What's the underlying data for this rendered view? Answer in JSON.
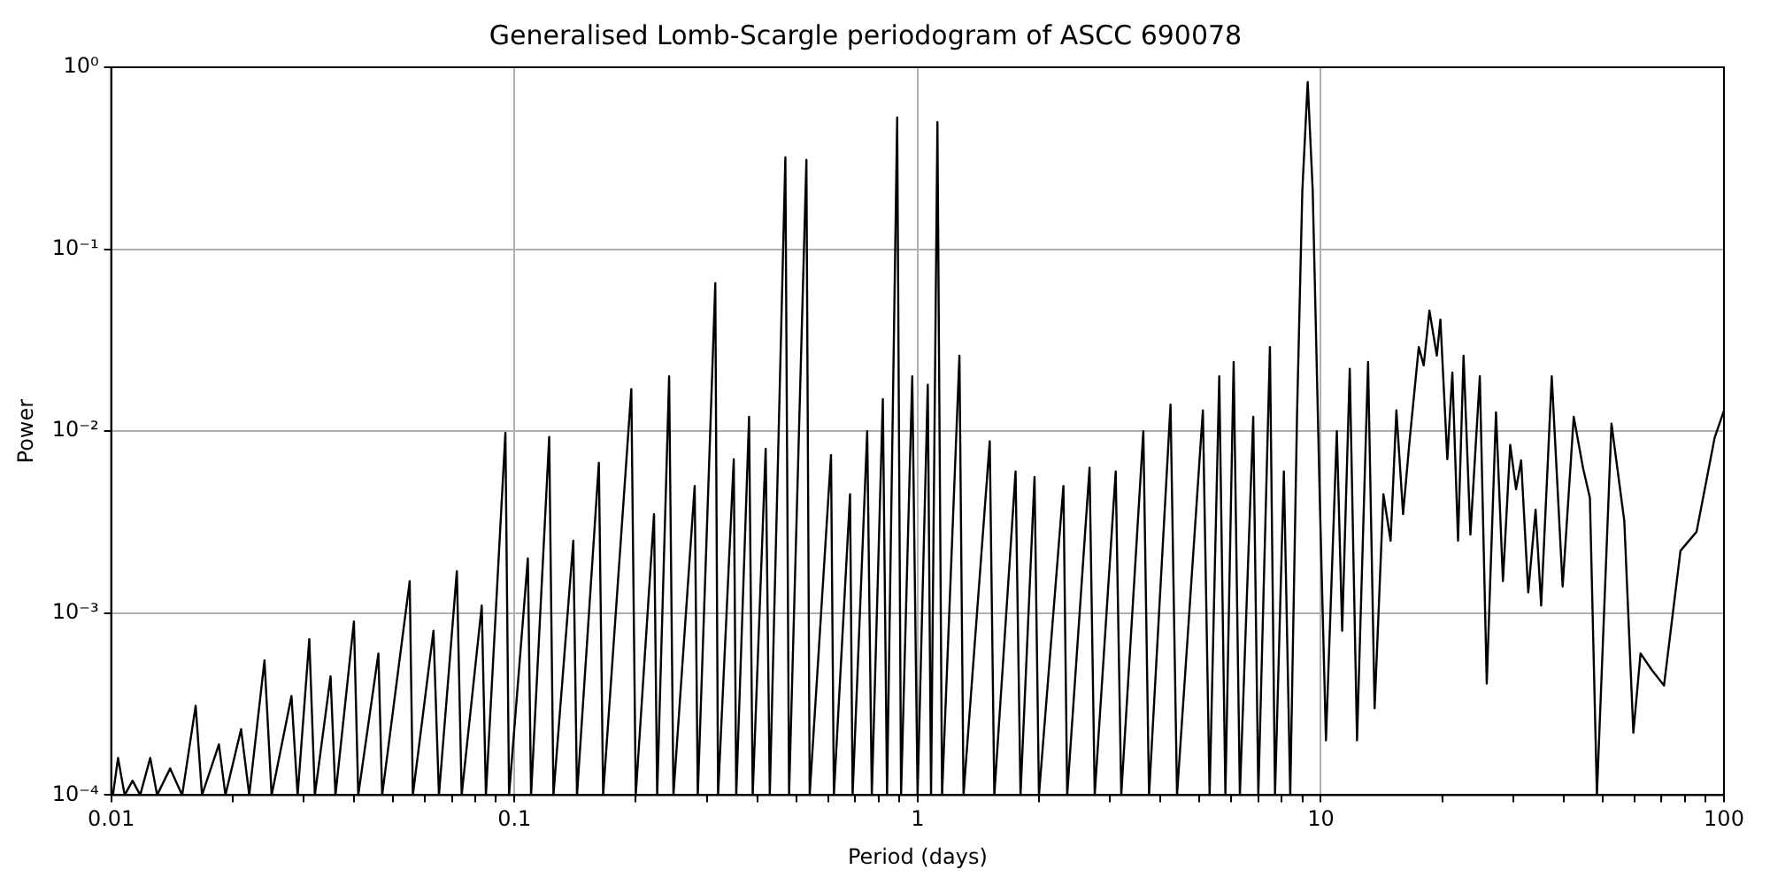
{
  "chart_data": {
    "type": "line",
    "title": "Generalised Lomb-Scargle periodogram of ASCC 690078",
    "xlabel": "Period (days)",
    "ylabel": "Power",
    "log": "xy",
    "grid": true,
    "legend": false,
    "marker": "none",
    "line_style": "solid",
    "xlim": [
      0.01,
      100
    ],
    "ylim": [
      0.0001,
      1
    ],
    "xticks": [
      0.01,
      {
        "value": 0.02,
        "label": null
      },
      {
        "value": 0.03,
        "label": null
      },
      {
        "value": 0.04,
        "label": null
      },
      {
        "value": 0.05,
        "label": null
      },
      {
        "value": 0.06,
        "label": null
      },
      {
        "value": 0.07,
        "label": null
      },
      {
        "value": 0.08,
        "label": null
      },
      {
        "value": 0.09,
        "label": null
      },
      0.1,
      {
        "value": 0.2,
        "label": null
      },
      {
        "value": 0.3,
        "label": null
      },
      {
        "value": 0.4,
        "label": null
      },
      {
        "value": 0.5,
        "label": null
      },
      {
        "value": 0.6,
        "label": null
      },
      {
        "value": 0.7,
        "label": null
      },
      {
        "value": 0.8,
        "label": null
      },
      {
        "value": 0.9,
        "label": null
      },
      1,
      {
        "value": 2,
        "label": null
      },
      {
        "value": 3,
        "label": null
      },
      {
        "value": 4,
        "label": null
      },
      {
        "value": 5,
        "label": null
      },
      {
        "value": 6,
        "label": null
      },
      {
        "value": 7,
        "label": null
      },
      {
        "value": 8,
        "label": null
      },
      {
        "value": 9,
        "label": null
      },
      10,
      {
        "value": 20,
        "label": null
      },
      {
        "value": 30,
        "label": null
      },
      {
        "value": 40,
        "label": null
      },
      {
        "value": 50,
        "label": null
      },
      {
        "value": 60,
        "label": null
      },
      {
        "value": 70,
        "label": null
      },
      {
        "value": 80,
        "label": null
      },
      {
        "value": 90,
        "label": null
      },
      100
    ],
    "yticks": [
      {
        "value": 0.0001,
        "label": "10⁻⁴"
      },
      {
        "value": 0.001,
        "label": "10⁻³"
      },
      {
        "value": 0.01,
        "label": "10⁻²"
      },
      {
        "value": 0.1,
        "label": "10⁻¹"
      },
      {
        "value": 1,
        "label": "10⁰"
      }
    ],
    "series": [
      {
        "color": "#000000",
        "x": [
          0.0101,
          0.0104,
          0.0108,
          0.0113,
          0.0118,
          0.0125,
          0.013,
          0.014,
          0.015,
          0.0162,
          0.0168,
          0.0185,
          0.0192,
          0.021,
          0.022,
          0.024,
          0.025,
          0.028,
          0.029,
          0.031,
          0.032,
          0.035,
          0.036,
          0.04,
          0.041,
          0.046,
          0.047,
          0.055,
          0.056,
          0.063,
          0.065,
          0.072,
          0.074,
          0.083,
          0.085,
          0.095,
          0.097,
          0.108,
          0.11,
          0.122,
          0.125,
          0.14,
          0.143,
          0.162,
          0.166,
          0.195,
          0.2,
          0.222,
          0.226,
          0.242,
          0.248,
          0.28,
          0.285,
          0.315,
          0.32,
          0.35,
          0.355,
          0.382,
          0.39,
          0.42,
          0.43,
          0.47,
          0.48,
          0.53,
          0.54,
          0.61,
          0.62,
          0.68,
          0.69,
          0.75,
          0.77,
          0.82,
          0.84,
          0.89,
          0.91,
          0.97,
          1.0,
          1.06,
          1.08,
          1.12,
          1.15,
          1.27,
          1.3,
          1.51,
          1.55,
          1.75,
          1.8,
          1.95,
          2.0,
          2.3,
          2.35,
          2.67,
          2.75,
          3.1,
          3.2,
          3.63,
          3.75,
          4.24,
          4.4,
          5.1,
          5.3,
          5.6,
          5.8,
          6.08,
          6.3,
          6.8,
          7.0,
          7.48,
          7.7,
          8.1,
          8.4,
          8.73,
          9.0,
          9.28,
          9.55,
          9.95,
          10.3,
          10.96,
          11.3,
          11.8,
          12.3,
          13.1,
          13.6,
          14.3,
          14.9,
          15.4,
          16.0,
          16.6,
          17.5,
          18.0,
          18.6,
          19.4,
          19.8,
          20.6,
          21.2,
          21.9,
          22.6,
          23.5,
          24.8,
          25.8,
          27.2,
          28.3,
          29.5,
          30.5,
          31.4,
          32.7,
          34.1,
          35.2,
          37.4,
          39.8,
          42.4,
          44.7,
          46.5,
          48.4,
          52.6,
          56.6,
          59.6,
          62.1,
          66.1,
          71.0,
          78.0,
          85.5,
          94.8,
          100
        ],
        "values": [
          0.0001,
          0.00016,
          0.0001,
          0.00012,
          0.0001,
          0.00016,
          0.0001,
          0.00014,
          0.0001,
          0.00031,
          0.0001,
          0.00019,
          0.0001,
          0.00023,
          0.0001,
          0.00055,
          0.0001,
          0.00035,
          0.0001,
          0.00072,
          0.0001,
          0.00045,
          0.0001,
          0.0009,
          0.0001,
          0.0006,
          0.0001,
          0.0015,
          0.0001,
          0.0008,
          0.0001,
          0.0017,
          0.0001,
          0.0011,
          0.0001,
          0.0098,
          0.0001,
          0.002,
          0.0001,
          0.0093,
          0.0001,
          0.0025,
          0.0001,
          0.0067,
          0.0001,
          0.017,
          0.0001,
          0.0035,
          0.0001,
          0.02,
          0.0001,
          0.005,
          0.0001,
          0.065,
          0.0001,
          0.007,
          0.0001,
          0.012,
          0.0001,
          0.008,
          0.0001,
          0.32,
          0.0001,
          0.31,
          0.0001,
          0.0074,
          0.0001,
          0.0045,
          0.0001,
          0.01,
          0.0001,
          0.015,
          0.0001,
          0.53,
          0.0001,
          0.02,
          0.0001,
          0.018,
          0.0001,
          0.5,
          0.0001,
          0.026,
          0.0001,
          0.0088,
          0.0001,
          0.006,
          0.0001,
          0.0056,
          0.0001,
          0.005,
          0.0001,
          0.0063,
          0.0001,
          0.006,
          0.0001,
          0.01,
          0.0001,
          0.014,
          0.0001,
          0.013,
          0.0001,
          0.02,
          0.0001,
          0.024,
          0.0001,
          0.012,
          0.0001,
          0.029,
          0.0001,
          0.006,
          0.0001,
          0.012,
          0.21,
          0.83,
          0.21,
          0.004,
          0.0002,
          0.01,
          0.0008,
          0.022,
          0.0002,
          0.024,
          0.0003,
          0.0045,
          0.0025,
          0.013,
          0.0035,
          0.0088,
          0.029,
          0.023,
          0.046,
          0.026,
          0.041,
          0.007,
          0.021,
          0.0025,
          0.026,
          0.0027,
          0.02,
          0.00041,
          0.0127,
          0.0015,
          0.0084,
          0.0048,
          0.0069,
          0.0013,
          0.0037,
          0.0011,
          0.02,
          0.0014,
          0.012,
          0.0063,
          0.0043,
          0.0001,
          0.011,
          0.0032,
          0.00022,
          0.0006,
          0.00049,
          0.0004,
          0.0022,
          0.0028,
          0.0092,
          0.013
        ]
      }
    ]
  }
}
